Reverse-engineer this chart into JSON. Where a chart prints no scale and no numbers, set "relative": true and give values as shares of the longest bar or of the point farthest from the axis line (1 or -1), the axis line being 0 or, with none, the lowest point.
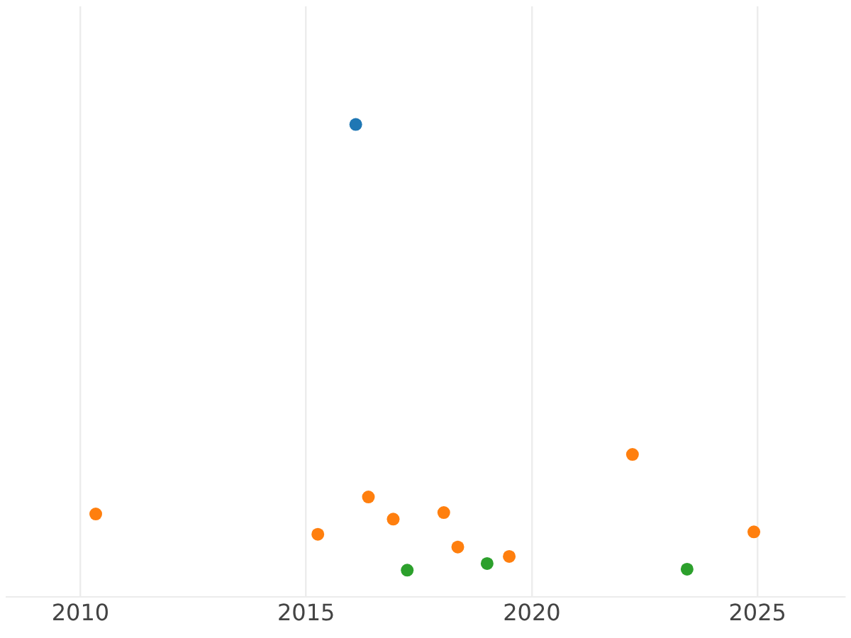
{
  "chart_data": {
    "type": "scatter",
    "relative": true,
    "grid": "x",
    "marker": "circle",
    "legend": false,
    "xlim": [
      2008.36,
      2026.93
    ],
    "xticks": [
      2010,
      2015,
      2020,
      2025
    ],
    "series": [
      {
        "color": "#1f77b4",
        "x": [
          2016.1
        ],
        "values": [
          1
        ]
      },
      {
        "color": "#ff7f0e",
        "x": [
          2010.34,
          2015.26,
          2016.38,
          2016.93,
          2018.05,
          2018.36,
          2019.5,
          2022.23,
          2024.92
        ],
        "values": [
          0.175,
          0.132,
          0.211,
          0.164,
          0.178,
          0.105,
          0.085,
          0.301,
          0.137
        ]
      },
      {
        "color": "#2ca02c",
        "x": [
          2017.24,
          2019.01,
          2023.44
        ],
        "values": [
          0.056,
          0.07,
          0.058
        ]
      }
    ]
  }
}
